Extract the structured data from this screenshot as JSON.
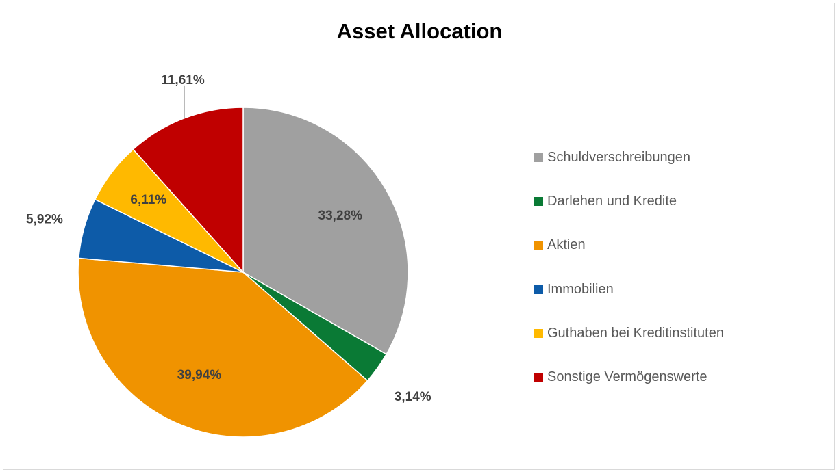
{
  "chart_data": {
    "type": "pie",
    "title": "Asset Allocation",
    "categories": [
      "Schuldverschreibungen",
      "Darlehen und Kredite",
      "Aktien",
      "Immobilien",
      "Guthaben bei Kreditinstituten",
      "Sonstige Vermögenswerte"
    ],
    "values": [
      33.28,
      3.14,
      39.94,
      5.92,
      6.11,
      11.61
    ],
    "labels": [
      "33,28%",
      "3,14%",
      "39,94%",
      "5,92%",
      "6,11%",
      "11,61%"
    ],
    "colors": [
      "#a0a0a0",
      "#0a7a35",
      "#f09300",
      "#0d5ba8",
      "#ffb900",
      "#c00000"
    ],
    "unit": "%",
    "start_angle": "12 o'clock",
    "direction": "clockwise",
    "legend_position": "right"
  }
}
